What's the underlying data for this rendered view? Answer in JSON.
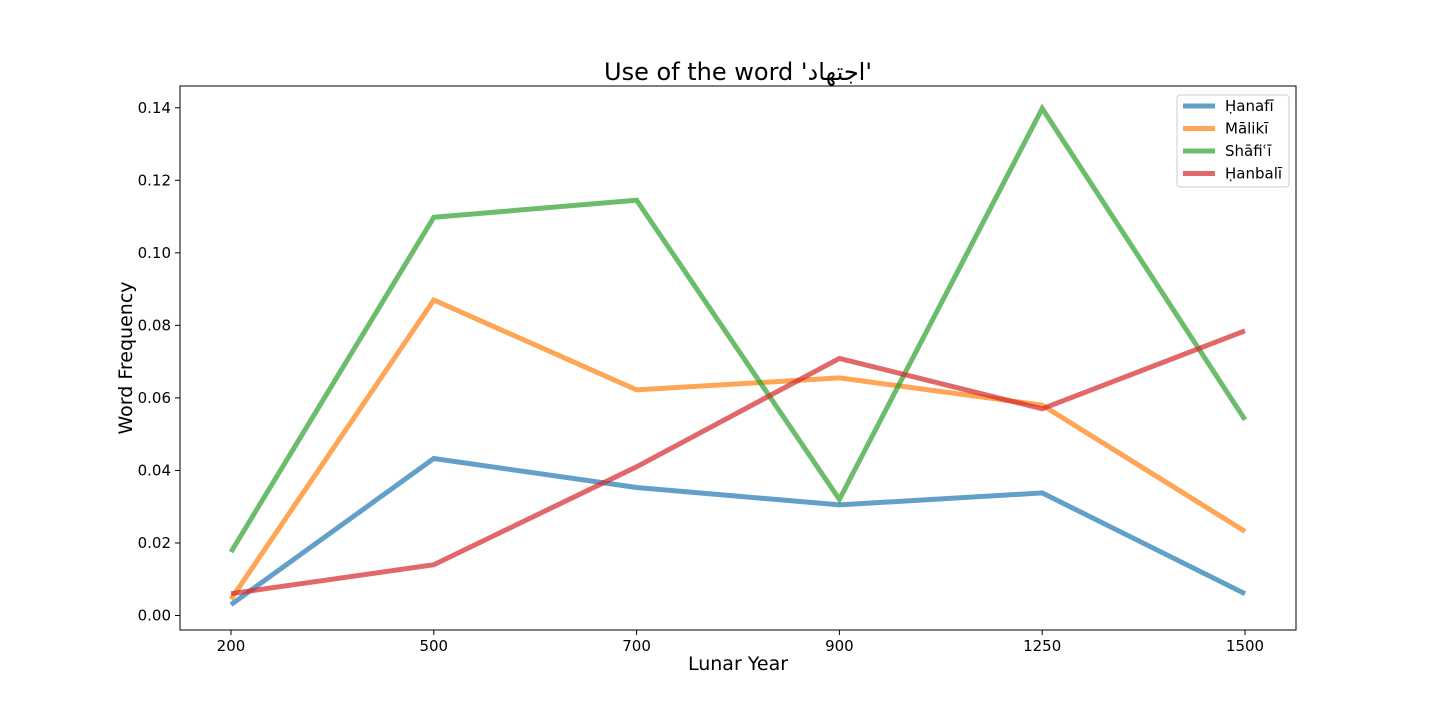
{
  "chart_data": {
    "type": "line",
    "title": "Use of the word 'اجتهاد'",
    "xlabel": "Lunar Year",
    "ylabel": "Word Frequency",
    "categories": [
      "200",
      "500",
      "700",
      "900",
      "1250",
      "1500"
    ],
    "ylim": [
      -0.004,
      0.146
    ],
    "yticks": [
      "0.00",
      "0.02",
      "0.04",
      "0.06",
      "0.08",
      "0.10",
      "0.12",
      "0.14"
    ],
    "grid": false,
    "legend_position": "top-right",
    "series": [
      {
        "name": "Ḥanafī",
        "color": "#1f77b4",
        "values": [
          0.003,
          0.0433,
          0.0353,
          0.0305,
          0.0338,
          0.006
        ]
      },
      {
        "name": "Mālikī",
        "color": "#ff7f0e",
        "values": [
          0.0045,
          0.087,
          0.0622,
          0.0655,
          0.058,
          0.0232
        ]
      },
      {
        "name": "Shāfiʿī",
        "color": "#2ca02c",
        "values": [
          0.0175,
          0.1098,
          0.1145,
          0.032,
          0.1398,
          0.054
        ]
      },
      {
        "name": "Ḥanbalī",
        "color": "#d62728",
        "values": [
          0.006,
          0.014,
          0.041,
          0.0709,
          0.057,
          0.0785
        ]
      }
    ]
  }
}
